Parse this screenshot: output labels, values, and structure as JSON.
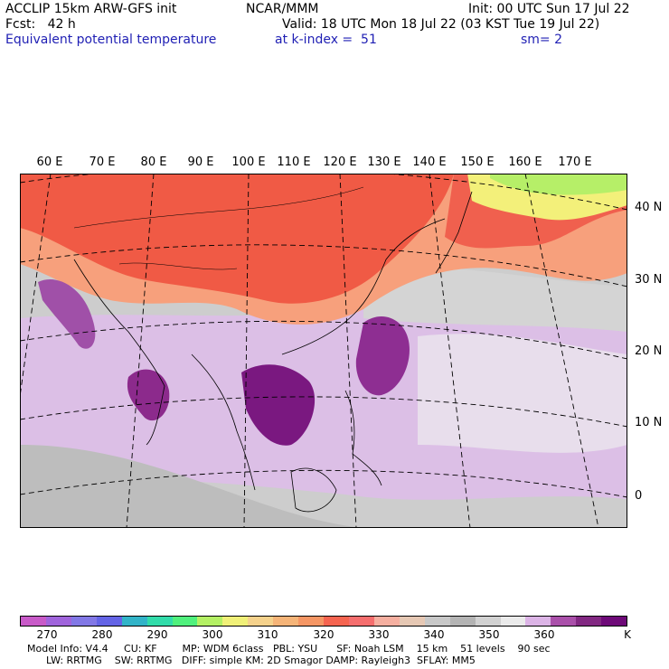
{
  "header": {
    "line1_left": "ACCLIP 15km ARW-GFS init",
    "line1_center": "NCAR/MMM",
    "line1_right": "Init: 00 UTC Sun 17 Jul 22",
    "line2_left": "Fcst:   42 h",
    "line2_right": "Valid: 18 UTC Mon 18 Jul 22 (03 KST Tue 19 Jul 22)",
    "line3_field": "Equivalent potential temperature",
    "line3_level": "at k-index =  51",
    "line3_smooth": "sm= 2"
  },
  "map": {
    "longitudes": [
      "60 E",
      "70 E",
      "80 E",
      "90 E",
      "100 E",
      "110 E",
      "120 E",
      "130 E",
      "140 E",
      "150 E",
      "160 E",
      "170 E"
    ],
    "latitudes": [
      "40 N",
      "30 N",
      "20 N",
      "10 N",
      "0"
    ]
  },
  "colorbar": {
    "colors": [
      "#c85ac8",
      "#a064dc",
      "#8278e6",
      "#6464e6",
      "#32b4c8",
      "#32dcaa",
      "#50f07d",
      "#b4f064",
      "#f0f078",
      "#f5d28c",
      "#f5b478",
      "#f59664",
      "#f56450",
      "#f56e6e",
      "#f5afa0",
      "#e6c8b4",
      "#c8c8c8",
      "#b4b4b4",
      "#d2d2d2",
      "#ebebeb",
      "#dcb4e6",
      "#aa50aa",
      "#822882",
      "#6e0a78"
    ],
    "ticks": [
      "270",
      "280",
      "290",
      "300",
      "310",
      "320",
      "330",
      "340",
      "350",
      "360"
    ],
    "unit": "K"
  },
  "footer": {
    "line1": "Model Info: V4.4     CU: KF        MP: WDM 6class   PBL: YSU      SF: Noah LSM    15 km    51 levels    90 sec",
    "line2": "      LW: RRTMG    SW: RRTMG   DIFF: simple KM: 2D Smagor DAMP: Rayleigh3  SFLAY: MM5"
  }
}
